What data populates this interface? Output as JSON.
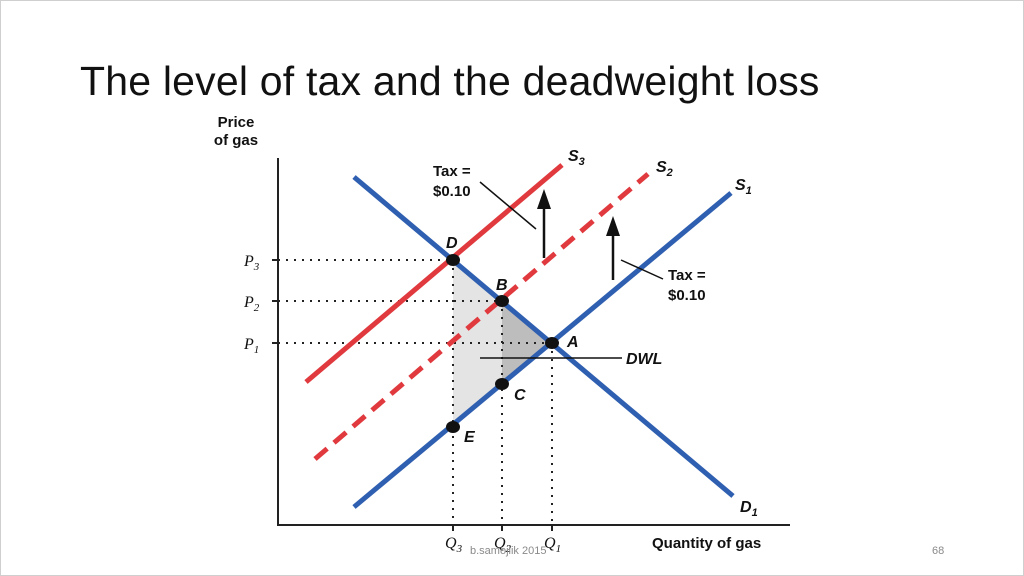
{
  "slide": {
    "title": "The level of tax and the deadweight loss",
    "footer_text": "b.samojlik 2015",
    "page_number": "68"
  },
  "diagram": {
    "y_axis_label_line1": "Price",
    "y_axis_label_line2": "of gas",
    "x_axis_label": "Quantity of gas",
    "price_ticks": [
      {
        "letter": "P",
        "sub": "3"
      },
      {
        "letter": "P",
        "sub": "2"
      },
      {
        "letter": "P",
        "sub": "1"
      }
    ],
    "quantity_ticks": [
      {
        "letter": "Q",
        "sub": "3"
      },
      {
        "letter": "Q",
        "sub": "2"
      },
      {
        "letter": "Q",
        "sub": "1"
      }
    ],
    "curves": {
      "s3": {
        "letter": "S",
        "sub": "3"
      },
      "s2": {
        "letter": "S",
        "sub": "2"
      },
      "s1": {
        "letter": "S",
        "sub": "1"
      },
      "d1": {
        "letter": "D",
        "sub": "1"
      }
    },
    "points": {
      "d": "D",
      "b": "B",
      "a": "A",
      "c": "C",
      "e": "E"
    },
    "tax_label_left": {
      "line1": "Tax =",
      "line2": "$0.10"
    },
    "tax_label_right": {
      "line1": "Tax =",
      "line2": "$0.10"
    },
    "dwl_label": "DWL",
    "colors": {
      "supply_tax": "#e0393e",
      "base_curves": "#2f5fb0",
      "shading": "#e4e4e4",
      "shading_dark": "#bdbdbd"
    }
  }
}
